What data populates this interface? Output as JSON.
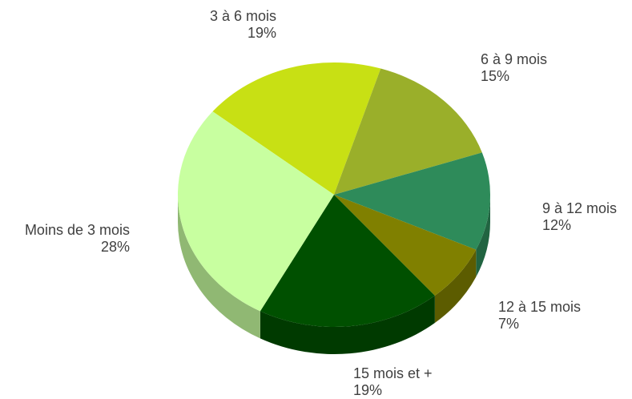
{
  "chart_data": {
    "type": "pie",
    "categories": [
      "3 à 6 mois",
      "6 à 9 mois",
      "9 à 12 mois",
      "12 à 15 mois",
      "15 mois et +",
      "Moins de 3 mois"
    ],
    "values": [
      19,
      15,
      12,
      7,
      19,
      28
    ],
    "value_labels": [
      "19%",
      "15%",
      "12%",
      "7%",
      "19%",
      "28%"
    ],
    "colors": [
      "#c8e014",
      "#9aaf2a",
      "#2e8b5a",
      "#808000",
      "#005000",
      "#c8ffa0"
    ]
  }
}
